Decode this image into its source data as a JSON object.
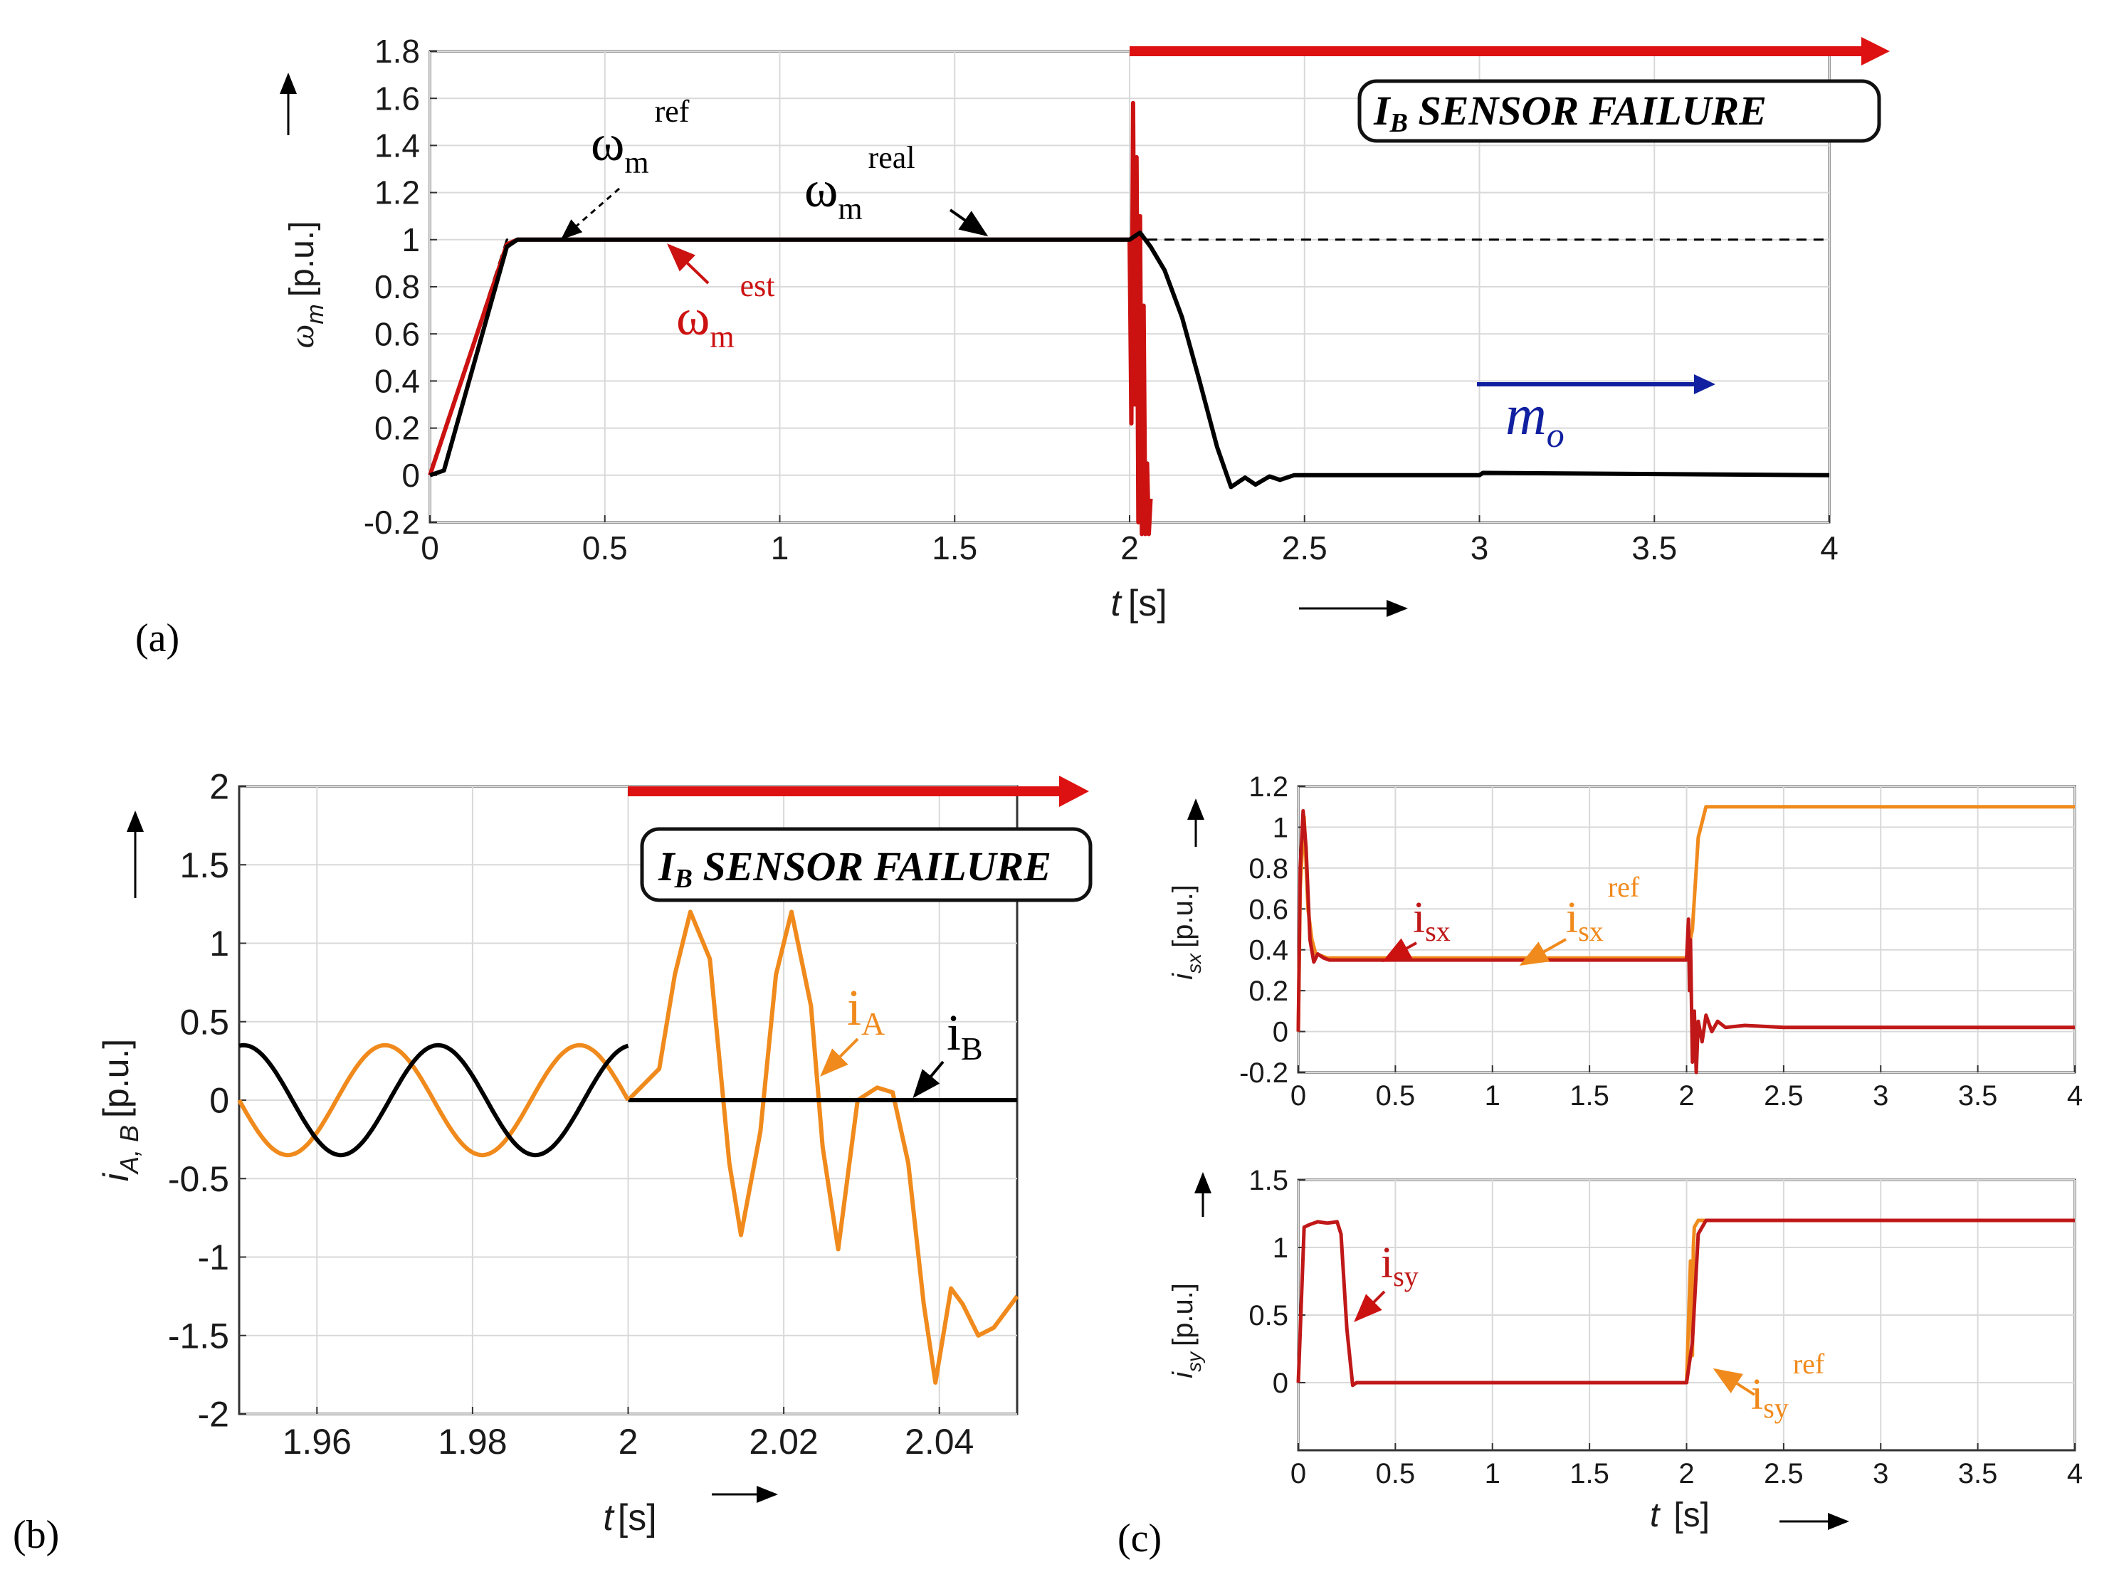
{
  "colors": {
    "real": "#000000",
    "est": "#cc1111",
    "ref": "#f08a1c",
    "isx": "#c01818",
    "mo": "#1020a0",
    "fail": "#dd1111"
  },
  "chart_data": [
    {
      "id": "a",
      "type": "line",
      "panel_label": "(a)",
      "ylabel_sym": "ω",
      "ylabel_sub": "m",
      "ylabel_unit": "[p.u.]",
      "xlabel_sym": "t",
      "xlabel_unit": "[s]",
      "xlim": [
        0,
        4
      ],
      "ylim": [
        -0.2,
        1.8
      ],
      "xticks": [
        0,
        0.5,
        1,
        1.5,
        2,
        2.5,
        3,
        3.5,
        4
      ],
      "xtick_labels": [
        "0",
        "0.5",
        "1",
        "1.5",
        "2",
        "2.5",
        "3",
        "3.5",
        "4"
      ],
      "yticks": [
        -0.2,
        0,
        0.2,
        0.4,
        0.6,
        0.8,
        1,
        1.2,
        1.4,
        1.6,
        1.8
      ],
      "ytick_labels": [
        "-0.2",
        "0",
        "0.2",
        "0.4",
        "0.6",
        "0.8",
        "1",
        "1.2",
        "1.4",
        "1.6",
        "1.8"
      ],
      "grid": true,
      "failure_label": "I",
      "failure_label_sub": "B",
      "failure_label_rest": " SENSOR FAILURE",
      "annotations": {
        "ref_base": "ω",
        "ref_sub": "m",
        "ref_sup": "ref",
        "real_base": "ω",
        "real_sub": "m",
        "real_sup": "real",
        "est_base": "ω",
        "est_sub": "m",
        "est_sup": "est",
        "mo_base": "m",
        "mo_sub": "o"
      },
      "series": [
        {
          "name": "ω_m^ref",
          "style": "dashed",
          "x": [
            0,
            0.22,
            4
          ],
          "y": [
            0,
            1,
            1
          ]
        },
        {
          "name": "ω_m^real",
          "x": [
            0,
            0.04,
            0.22,
            0.25,
            2.0,
            2.03,
            2.06,
            2.1,
            2.15,
            2.2,
            2.25,
            2.29,
            2.33,
            2.36,
            2.4,
            2.43,
            2.47,
            3.0,
            3.01,
            4.0
          ],
          "y": [
            0,
            0.02,
            0.97,
            1.0,
            1.0,
            1.03,
            0.97,
            0.87,
            0.67,
            0.4,
            0.12,
            -0.05,
            -0.01,
            -0.04,
            -0.005,
            -0.02,
            0,
            0,
            0.01,
            0
          ]
        },
        {
          "name": "ω_m^est",
          "x": [
            0,
            0.22,
            0.25,
            2.0,
            2.005,
            2.01,
            2.015,
            2.02,
            2.025,
            2.03,
            2.035,
            2.04,
            2.045,
            2.05,
            2.055,
            2.06
          ],
          "y": [
            0,
            0.98,
            1.0,
            1.0,
            0.22,
            1.58,
            0.3,
            1.35,
            -0.2,
            1.1,
            -0.25,
            0.72,
            -0.25,
            0.05,
            -0.25,
            -0.1
          ]
        }
      ]
    },
    {
      "id": "b",
      "type": "line",
      "panel_label": "(b)",
      "ylabel_sym": "i",
      "ylabel_sub": "A, B",
      "ylabel_unit": "[p.u.]",
      "xlabel_sym": "t",
      "xlabel_unit": "[s]",
      "xlim": [
        1.95,
        2.05
      ],
      "ylim": [
        -2,
        2
      ],
      "xticks": [
        1.96,
        1.98,
        2,
        2.02,
        2.04
      ],
      "xtick_labels": [
        "1.96",
        "1.98",
        "2",
        "2.02",
        "2.04"
      ],
      "yticks": [
        -2,
        -1.5,
        -1,
        -0.5,
        0,
        0.5,
        1,
        1.5,
        2
      ],
      "ytick_labels": [
        "-2",
        "-1.5",
        "-1",
        "-0.5",
        "0",
        "0.5",
        "1",
        "1.5",
        "2"
      ],
      "grid": true,
      "failure_label": "I",
      "failure_label_sub": "B",
      "failure_label_rest": " SENSOR FAILURE",
      "annotations": {
        "iA_base": "i",
        "iA_sub": "A",
        "iB_base": "i",
        "iB_sub": "B"
      },
      "series": [
        {
          "name": "i_A",
          "x": [
            2.0,
            2.004,
            2.006,
            2.008,
            2.0105,
            2.013,
            2.0145,
            2.017,
            2.019,
            2.021,
            2.0235,
            2.025,
            2.027,
            2.0295,
            2.032,
            2.034,
            2.036,
            2.038,
            2.0395,
            2.0415,
            2.043,
            2.045,
            2.047,
            2.05
          ],
          "y": [
            0,
            0.2,
            0.8,
            1.2,
            0.9,
            -0.4,
            -0.86,
            -0.2,
            0.8,
            1.2,
            0.6,
            -0.3,
            -0.95,
            0,
            0.08,
            0.05,
            -0.4,
            -1.3,
            -1.8,
            -1.2,
            -1.3,
            -1.5,
            -1.45,
            -1.25
          ]
        },
        {
          "name": "i_B",
          "x": [
            2.0,
            2.05
          ],
          "y": [
            0,
            0
          ]
        }
      ]
    },
    {
      "id": "c1",
      "type": "line",
      "panel_label": "(c)",
      "ylabel_sym": "i",
      "ylabel_sub": "sx",
      "ylabel_unit": "[p.u.]",
      "xlim": [
        0,
        4
      ],
      "ylim": [
        -0.2,
        1.2
      ],
      "xticks": [
        0,
        0.5,
        1,
        1.5,
        2,
        2.5,
        3,
        3.5,
        4
      ],
      "xtick_labels": [
        "0",
        "0.5",
        "1",
        "1.5",
        "2",
        "2.5",
        "3",
        "3.5",
        "4"
      ],
      "yticks": [
        -0.2,
        0,
        0.2,
        0.4,
        0.6,
        0.8,
        1,
        1.2
      ],
      "ytick_labels": [
        "-0.2",
        "0",
        "0.2",
        "0.4",
        "0.6",
        "0.8",
        "1",
        "1.2"
      ],
      "grid": true,
      "annotations": {
        "isx_base": "i",
        "isx_sub": "sx",
        "isxref_base": "i",
        "isxref_sub": "sx",
        "isxref_sup": "ref"
      },
      "series": [
        {
          "name": "i_sx^ref",
          "x": [
            0,
            0.01,
            0.03,
            0.05,
            0.07,
            0.09,
            0.12,
            0.15,
            2.0,
            2.03,
            2.06,
            2.1,
            4.0
          ],
          "y": [
            0,
            0.7,
            1.05,
            0.6,
            0.45,
            0.38,
            0.37,
            0.36,
            0.36,
            0.5,
            0.95,
            1.1,
            1.1
          ]
        },
        {
          "name": "i_sx",
          "x": [
            0,
            0.01,
            0.025,
            0.04,
            0.06,
            0.08,
            0.1,
            0.13,
            0.16,
            2.0,
            2.01,
            2.015,
            2.02,
            2.03,
            2.04,
            2.05,
            2.06,
            2.08,
            2.1,
            2.13,
            2.16,
            2.2,
            2.3,
            2.5,
            4.0
          ],
          "y": [
            0,
            0.8,
            1.08,
            0.9,
            0.45,
            0.34,
            0.38,
            0.36,
            0.35,
            0.35,
            0.55,
            0.2,
            0.45,
            -0.15,
            0.1,
            -0.2,
            0.05,
            -0.05,
            0.08,
            0.0,
            0.05,
            0.02,
            0.03,
            0.02,
            0.02
          ]
        }
      ]
    },
    {
      "id": "c2",
      "type": "line",
      "ylabel_sym": "i",
      "ylabel_sub": "sy",
      "ylabel_unit": "[p.u.]",
      "xlabel_sym": "t",
      "xlabel_unit": "[s]",
      "xlim": [
        0,
        4
      ],
      "ylim": [
        -0.5,
        1.5
      ],
      "xticks": [
        0,
        0.5,
        1,
        1.5,
        2,
        2.5,
        3,
        3.5,
        4
      ],
      "xtick_labels": [
        "0",
        "0.5",
        "1",
        "1.5",
        "2",
        "2.5",
        "3",
        "3.5",
        "4"
      ],
      "yticks": [
        0,
        0.5,
        1,
        1.5
      ],
      "ytick_labels": [
        "0",
        "0.5",
        "1",
        "1.5"
      ],
      "grid": true,
      "annotations": {
        "isy_base": "i",
        "isy_sub": "sy",
        "isyref_base": "i",
        "isyref_sub": "sy",
        "isyref_sup": "ref"
      },
      "series": [
        {
          "name": "i_sy^ref",
          "x": [
            2.0,
            2.02,
            2.03,
            2.035,
            2.04,
            2.06,
            4.0
          ],
          "y": [
            0,
            0.9,
            0.2,
            1.0,
            1.15,
            1.2,
            1.2
          ]
        },
        {
          "name": "i_sy",
          "x": [
            0,
            0.03,
            0.06,
            0.1,
            0.15,
            0.2,
            0.22,
            0.25,
            0.28,
            0.3,
            2.0,
            2.03,
            2.06,
            2.1,
            2.5,
            4.0
          ],
          "y": [
            0,
            1.15,
            1.17,
            1.19,
            1.18,
            1.19,
            1.1,
            0.4,
            -0.02,
            0,
            0,
            0.3,
            1.1,
            1.2,
            1.2,
            1.2
          ]
        }
      ]
    }
  ]
}
